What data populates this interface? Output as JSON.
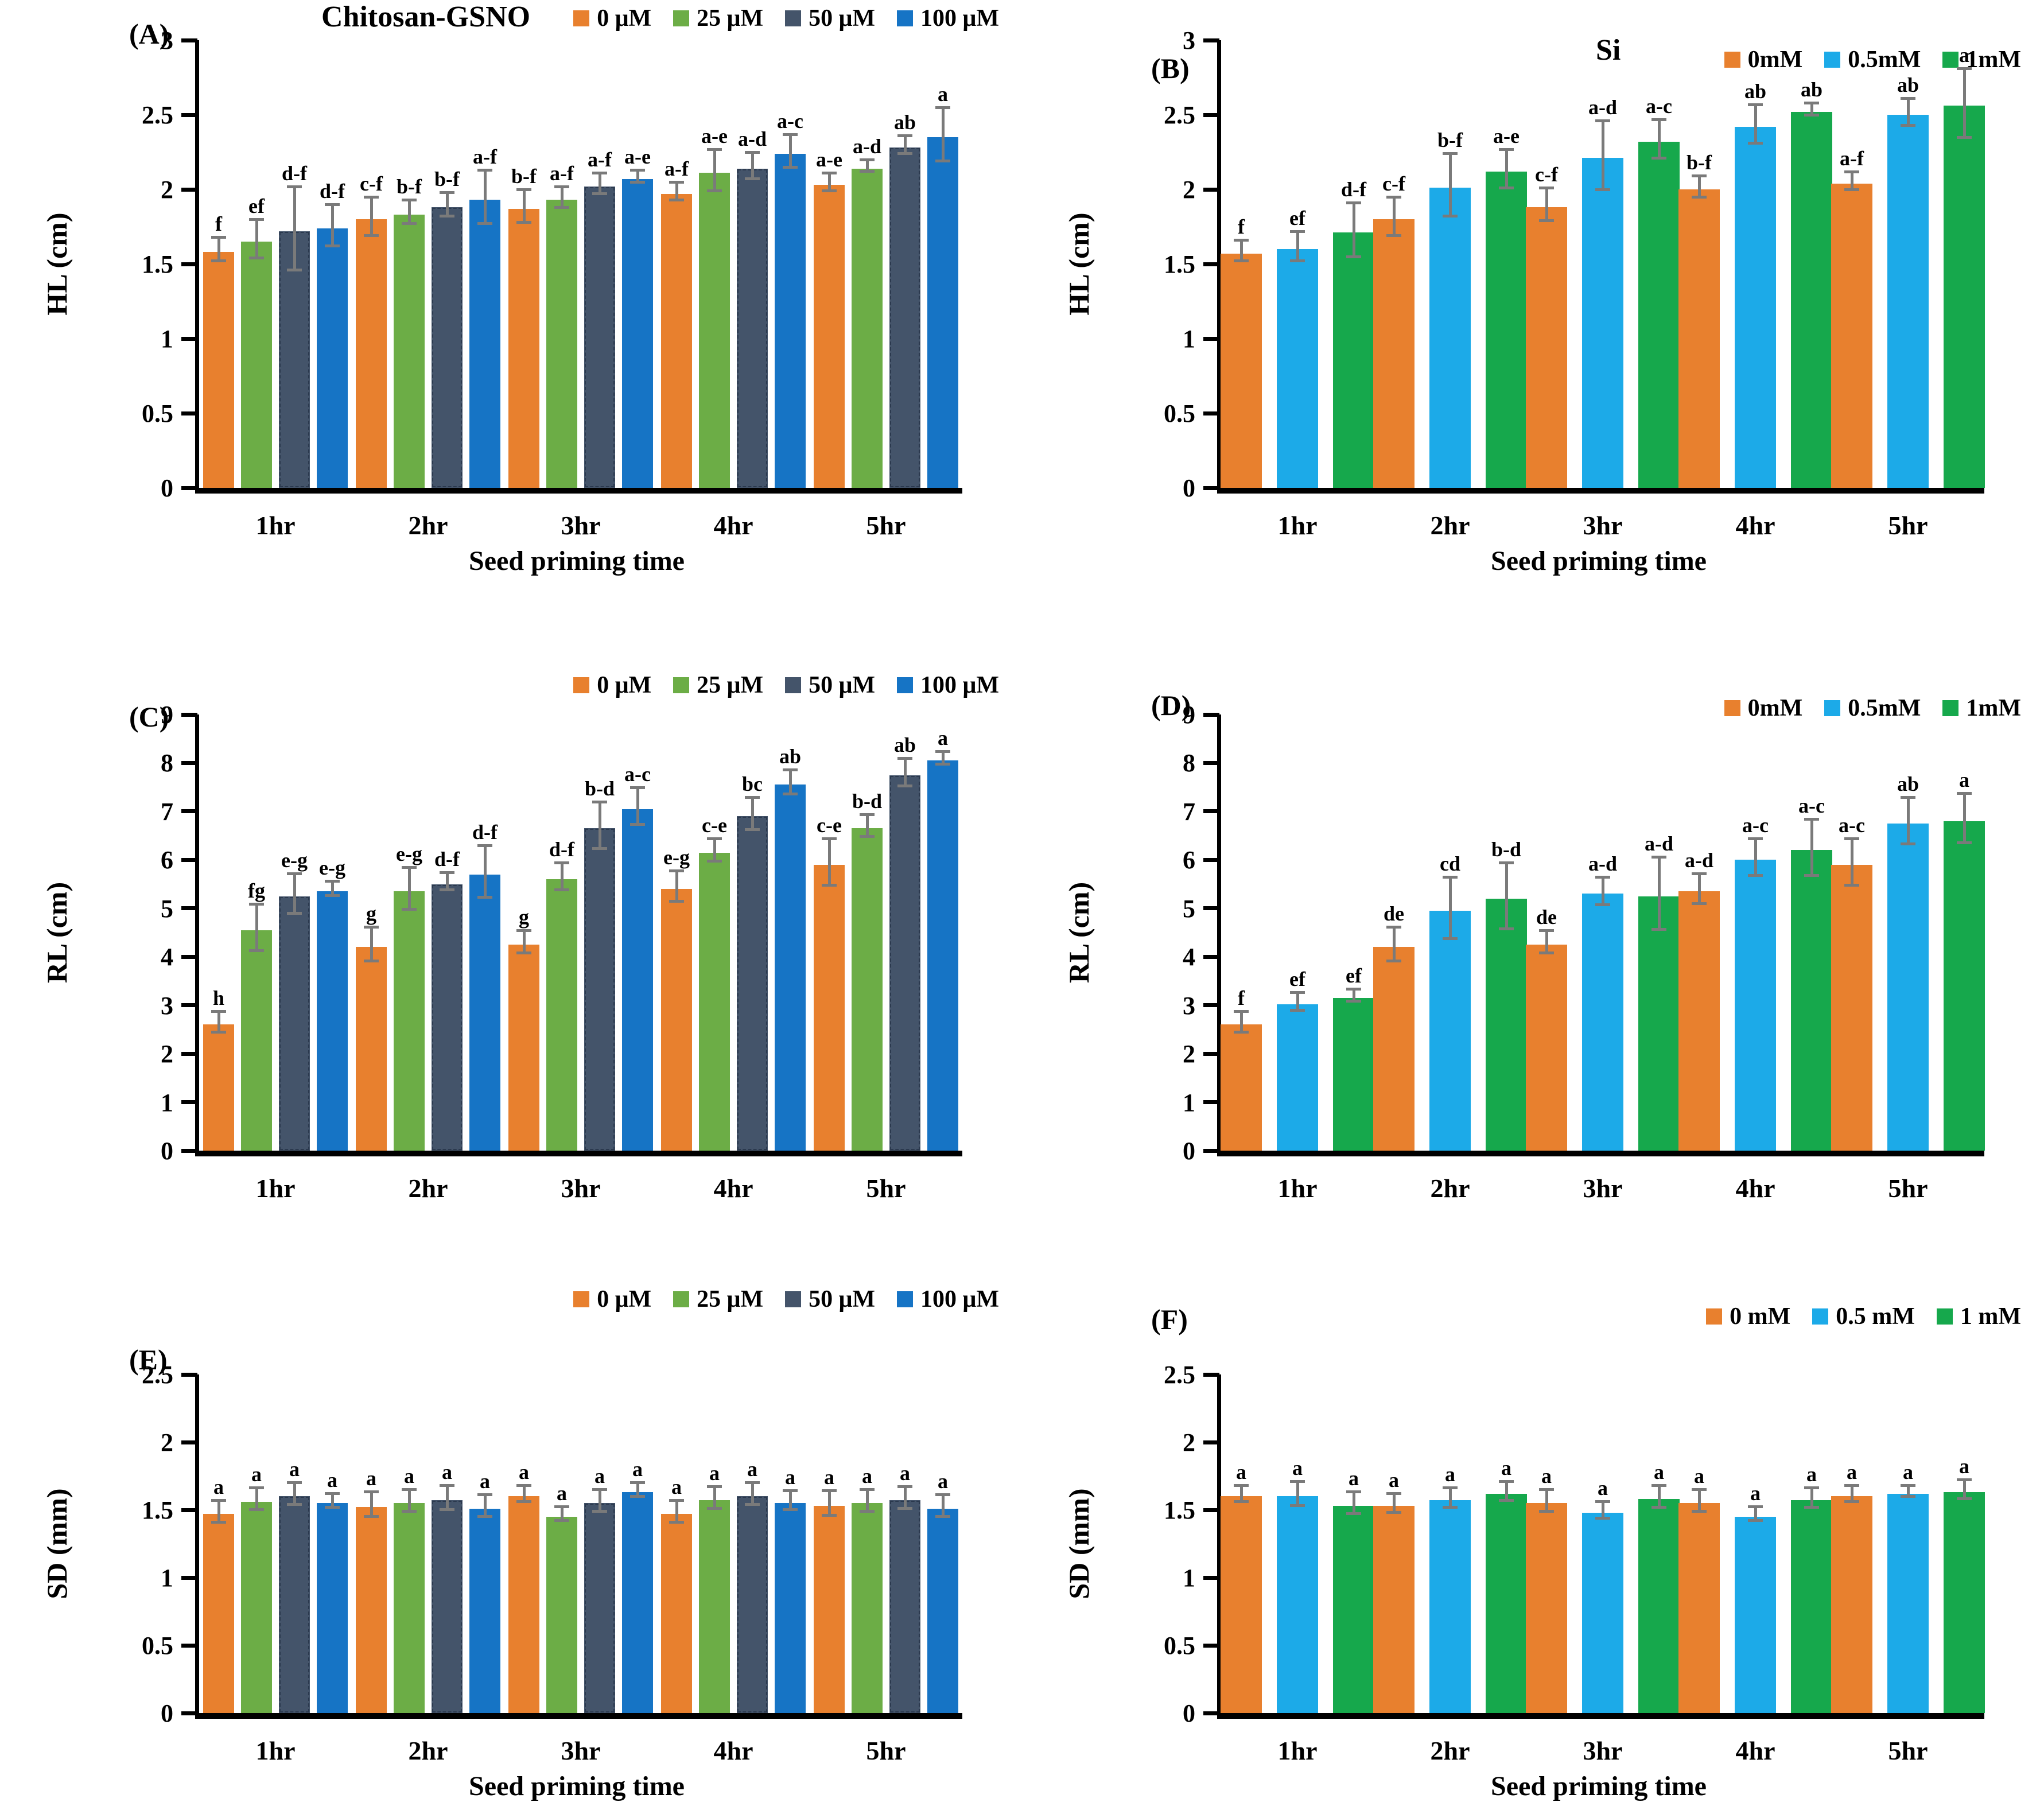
{
  "figure": {
    "background": "#ffffff",
    "x_axis_title": "Seed priming time",
    "error_bar_color": "#7a7a7a",
    "axis_color": "#000000"
  },
  "chart_data": [
    {
      "type": "bar",
      "id": "A",
      "panel_label": "(A)",
      "title": "Chitosan-GSNO",
      "ylabel": "HL (cm)",
      "xlabel": "Seed priming time",
      "ylim": [
        0,
        3
      ],
      "y_ticks": [
        0,
        0.5,
        1,
        1.5,
        2,
        2.5,
        3
      ],
      "categories": [
        "1hr",
        "2hr",
        "3hr",
        "4hr",
        "5hr"
      ],
      "legend_position": "top-right",
      "series": [
        {
          "name": "0 μM",
          "color": "#E8802E",
          "values": [
            1.58,
            1.8,
            1.87,
            1.97,
            2.03
          ],
          "errors": [
            0.07,
            0.12,
            0.1,
            0.05,
            0.05
          ],
          "letters": [
            "f",
            "c-f",
            "b-f",
            "a-f",
            "a-e"
          ]
        },
        {
          "name": "25 μM",
          "color": "#6CAD46",
          "values": [
            1.65,
            1.83,
            1.93,
            2.11,
            2.14
          ],
          "errors": [
            0.12,
            0.07,
            0.06,
            0.13,
            0.03
          ],
          "letters": [
            "ef",
            "b-f",
            "a-f",
            "a-e",
            "a-d"
          ]
        },
        {
          "name": "50 μM",
          "color": "#44546A",
          "values": [
            1.72,
            1.88,
            2.02,
            2.14,
            2.28
          ],
          "errors": [
            0.27,
            0.07,
            0.06,
            0.08,
            0.05
          ],
          "letters": [
            "d-f",
            "b-f",
            "a-f",
            "a-d",
            "ab"
          ]
        },
        {
          "name": "100 μM",
          "color": "#1674C5",
          "values": [
            1.74,
            1.93,
            2.07,
            2.24,
            2.35
          ],
          "errors": [
            0.13,
            0.17,
            0.03,
            0.1,
            0.17
          ],
          "letters": [
            "d-f",
            "a-f",
            "a-e",
            "a-c",
            "a"
          ]
        }
      ]
    },
    {
      "type": "bar",
      "id": "B",
      "panel_label": "(B)",
      "title": "Si",
      "ylabel": "HL (cm)",
      "xlabel": "Seed priming time",
      "ylim": [
        0,
        3
      ],
      "y_ticks": [
        0,
        0.5,
        1,
        1.5,
        2,
        2.5,
        3
      ],
      "categories": [
        "1hr",
        "2hr",
        "3hr",
        "4hr",
        "5hr"
      ],
      "legend_position": "top-right",
      "series": [
        {
          "name": "0mM",
          "color": "#E8802E",
          "values": [
            1.57,
            1.8,
            1.88,
            2.0,
            2.04
          ],
          "errors": [
            0.06,
            0.12,
            0.1,
            0.06,
            0.05
          ],
          "letters": [
            "f",
            "c-f",
            "c-f",
            "b-f",
            "a-f"
          ]
        },
        {
          "name": "0.5mM",
          "color": "#1CAAE8",
          "values": [
            1.6,
            2.01,
            2.21,
            2.42,
            2.5
          ],
          "errors": [
            0.09,
            0.2,
            0.22,
            0.12,
            0.08
          ],
          "letters": [
            "ef",
            "b-f",
            "a-d",
            "ab",
            "ab"
          ]
        },
        {
          "name": "1mM",
          "color": "#16A84C",
          "values": [
            1.71,
            2.12,
            2.32,
            2.52,
            2.56
          ],
          "errors": [
            0.17,
            0.12,
            0.12,
            0.03,
            0.22
          ],
          "letters": [
            "d-f",
            "a-e",
            "a-c",
            "ab",
            "a"
          ]
        }
      ]
    },
    {
      "type": "bar",
      "id": "C",
      "panel_label": "(C)",
      "title": "",
      "ylabel": "RL (cm)",
      "xlabel": "Seed priming time",
      "ylim": [
        0,
        9
      ],
      "y_ticks": [
        0,
        1,
        2,
        3,
        4,
        5,
        6,
        7,
        8,
        9
      ],
      "categories": [
        "1hr",
        "2hr",
        "3hr",
        "4hr",
        "5hr"
      ],
      "legend_position": "top-right",
      "series": [
        {
          "name": "0 μM",
          "color": "#E8802E",
          "values": [
            2.6,
            4.2,
            4.25,
            5.4,
            5.9
          ],
          "errors": [
            0.18,
            0.32,
            0.2,
            0.28,
            0.45
          ],
          "letters": [
            "h",
            "g",
            "g",
            "e-g",
            "c-e"
          ]
        },
        {
          "name": "25 μM",
          "color": "#6CAD46",
          "values": [
            4.55,
            5.35,
            5.6,
            6.15,
            6.65
          ],
          "errors": [
            0.45,
            0.4,
            0.25,
            0.2,
            0.2
          ],
          "letters": [
            "fg",
            "e-g",
            "d-f",
            "c-e",
            "b-d"
          ]
        },
        {
          "name": "50 μM",
          "color": "#44546A",
          "values": [
            5.25,
            5.5,
            6.65,
            6.9,
            7.75
          ],
          "errors": [
            0.38,
            0.15,
            0.45,
            0.3,
            0.25
          ],
          "letters": [
            "e-g",
            "d-f",
            "b-d",
            "bc",
            "ab"
          ]
        },
        {
          "name": "100 μM",
          "color": "#1674C5",
          "values": [
            5.35,
            5.7,
            7.05,
            7.55,
            8.05
          ],
          "errors": [
            0.12,
            0.5,
            0.35,
            0.22,
            0.1
          ],
          "letters": [
            "e-g",
            "d-f",
            "a-c",
            "ab",
            "a"
          ]
        }
      ]
    },
    {
      "type": "bar",
      "id": "D",
      "panel_label": "(D)",
      "title": "",
      "ylabel": "RL (cm)",
      "xlabel": "Seed priming time",
      "ylim": [
        0,
        9
      ],
      "y_ticks": [
        0,
        1,
        2,
        3,
        4,
        5,
        6,
        7,
        8,
        9
      ],
      "categories": [
        "1hr",
        "2hr",
        "3hr",
        "4hr",
        "5hr"
      ],
      "legend_position": "top-right",
      "series": [
        {
          "name": "0mM",
          "color": "#E8802E",
          "values": [
            2.6,
            4.2,
            4.25,
            5.35,
            5.9
          ],
          "errors": [
            0.18,
            0.32,
            0.2,
            0.28,
            0.45
          ],
          "letters": [
            "f",
            "de",
            "de",
            "a-d",
            "a-c"
          ]
        },
        {
          "name": "0.5mM",
          "color": "#1CAAE8",
          "values": [
            3.02,
            4.95,
            5.3,
            6.0,
            6.75
          ],
          "errors": [
            0.15,
            0.6,
            0.25,
            0.35,
            0.45
          ],
          "letters": [
            "ef",
            "cd",
            "a-d",
            "a-c",
            "ab"
          ]
        },
        {
          "name": "1mM",
          "color": "#16A84C",
          "values": [
            3.15,
            5.2,
            5.25,
            6.2,
            6.8
          ],
          "errors": [
            0.1,
            0.65,
            0.72,
            0.55,
            0.48
          ],
          "letters": [
            "ef",
            "b-d",
            "a-d",
            "a-c",
            "a"
          ]
        }
      ]
    },
    {
      "type": "bar",
      "id": "E",
      "panel_label": "(E)",
      "title": "",
      "ylabel": "SD (mm)",
      "xlabel": "Seed priming time",
      "ylim": [
        0,
        2.5
      ],
      "y_ticks": [
        0,
        0.5,
        1,
        1.5,
        2,
        2.5
      ],
      "categories": [
        "1hr",
        "2hr",
        "3hr",
        "4hr",
        "5hr"
      ],
      "legend_position": "top-right",
      "series": [
        {
          "name": "0 μM",
          "color": "#E8802E",
          "values": [
            1.47,
            1.52,
            1.6,
            1.47,
            1.53
          ],
          "errors": [
            0.07,
            0.08,
            0.05,
            0.07,
            0.08
          ],
          "letters": [
            "a",
            "a",
            "a",
            "a",
            "a"
          ]
        },
        {
          "name": "25 μM",
          "color": "#6CAD46",
          "values": [
            1.56,
            1.55,
            1.45,
            1.57,
            1.55
          ],
          "errors": [
            0.07,
            0.07,
            0.04,
            0.07,
            0.07
          ],
          "letters": [
            "a",
            "a",
            "a",
            "a",
            "a"
          ]
        },
        {
          "name": "50 μM",
          "color": "#44546A",
          "values": [
            1.6,
            1.57,
            1.55,
            1.6,
            1.57
          ],
          "errors": [
            0.07,
            0.08,
            0.07,
            0.07,
            0.07
          ],
          "letters": [
            "a",
            "a",
            "a",
            "a",
            "a"
          ]
        },
        {
          "name": "100 μM",
          "color": "#1674C5",
          "values": [
            1.55,
            1.51,
            1.63,
            1.55,
            1.51
          ],
          "errors": [
            0.04,
            0.07,
            0.04,
            0.06,
            0.07
          ],
          "letters": [
            "a",
            "a",
            "a",
            "a",
            "a"
          ]
        }
      ]
    },
    {
      "type": "bar",
      "id": "F",
      "panel_label": "(F)",
      "title": "",
      "ylabel": "SD (mm)",
      "xlabel": "Seed priming time",
      "ylim": [
        0,
        2.5
      ],
      "y_ticks": [
        0,
        0.5,
        1,
        1.5,
        2,
        2.5
      ],
      "categories": [
        "1hr",
        "2hr",
        "3hr",
        "4hr",
        "5hr"
      ],
      "legend_position": "top-right",
      "series": [
        {
          "name": "0 mM",
          "color": "#E8802E",
          "values": [
            1.6,
            1.53,
            1.55,
            1.55,
            1.6
          ],
          "errors": [
            0.05,
            0.06,
            0.07,
            0.07,
            0.05
          ],
          "letters": [
            "a",
            "a",
            "a",
            "a",
            "a"
          ]
        },
        {
          "name": "0.5 mM",
          "color": "#1CAAE8",
          "values": [
            1.6,
            1.57,
            1.48,
            1.45,
            1.62
          ],
          "errors": [
            0.08,
            0.06,
            0.05,
            0.04,
            0.03
          ],
          "letters": [
            "a",
            "a",
            "a",
            "a",
            "a"
          ]
        },
        {
          "name": "1 mM",
          "color": "#16A84C",
          "values": [
            1.53,
            1.62,
            1.58,
            1.57,
            1.63
          ],
          "errors": [
            0.07,
            0.06,
            0.07,
            0.06,
            0.06
          ],
          "letters": [
            "a",
            "a",
            "a",
            "a",
            "a"
          ]
        }
      ]
    }
  ]
}
